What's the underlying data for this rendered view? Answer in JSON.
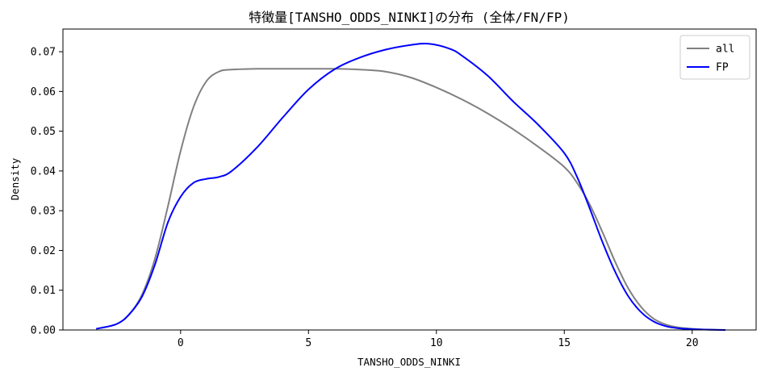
{
  "chart_data": {
    "type": "line",
    "title": "特徴量[TANSHO_ODDS_NINKI]の分布 (全体/FN/FP)",
    "xlabel": "TANSHO_ODDS_NINKI",
    "ylabel": "Density",
    "xlim": [
      -4.6,
      22.5
    ],
    "ylim": [
      0.0,
      0.0757
    ],
    "xticks": [
      0,
      5,
      10,
      15,
      20
    ],
    "xtick_labels": [
      "0",
      "5",
      "10",
      "15",
      "20"
    ],
    "yticks": [
      0.0,
      0.01,
      0.02,
      0.03,
      0.04,
      0.05,
      0.06,
      0.07
    ],
    "ytick_labels": [
      "0.00",
      "0.01",
      "0.02",
      "0.03",
      "0.04",
      "0.05",
      "0.06",
      "0.07"
    ],
    "grid": false,
    "legend_position": "top-right",
    "series": [
      {
        "name": "all",
        "color": "#808080",
        "x": [
          -3.3,
          -2.5,
          -2.0,
          -1.5,
          -1.0,
          -0.5,
          0.0,
          0.5,
          1.0,
          1.5,
          2.0,
          3.0,
          4.0,
          5.0,
          6.0,
          7.0,
          8.0,
          9.0,
          10.0,
          11.0,
          12.0,
          13.0,
          14.0,
          15.0,
          15.5,
          16.0,
          16.5,
          17.0,
          17.5,
          18.0,
          18.5,
          19.0,
          19.5,
          20.0,
          20.5,
          21.3
        ],
        "y": [
          0.0003,
          0.0015,
          0.004,
          0.009,
          0.018,
          0.031,
          0.045,
          0.056,
          0.0625,
          0.065,
          0.0655,
          0.0657,
          0.0657,
          0.0657,
          0.0657,
          0.0655,
          0.065,
          0.0635,
          0.061,
          0.058,
          0.0545,
          0.0505,
          0.046,
          0.041,
          0.037,
          0.0315,
          0.0245,
          0.017,
          0.0105,
          0.0058,
          0.0028,
          0.0013,
          0.0006,
          0.0003,
          0.0001,
          0.0
        ]
      },
      {
        "name": "FP",
        "color": "#0000ff",
        "x": [
          -3.3,
          -2.5,
          -2.0,
          -1.5,
          -1.0,
          -0.5,
          0.0,
          0.5,
          1.0,
          1.5,
          2.0,
          3.0,
          4.0,
          5.0,
          6.0,
          7.0,
          8.0,
          9.0,
          9.7,
          10.5,
          11.0,
          12.0,
          13.0,
          14.0,
          15.0,
          15.5,
          16.0,
          16.5,
          17.0,
          17.5,
          18.0,
          18.5,
          19.0,
          19.5,
          20.0,
          20.5,
          21.3
        ],
        "y": [
          0.0003,
          0.0015,
          0.004,
          0.0085,
          0.0165,
          0.027,
          0.0335,
          0.037,
          0.038,
          0.0385,
          0.04,
          0.046,
          0.0535,
          0.0605,
          0.0655,
          0.0685,
          0.0705,
          0.0717,
          0.072,
          0.0708,
          0.069,
          0.064,
          0.0575,
          0.0515,
          0.0445,
          0.0385,
          0.0305,
          0.022,
          0.0145,
          0.0085,
          0.0045,
          0.0021,
          0.0009,
          0.0004,
          0.0002,
          0.0001,
          0.0
        ]
      }
    ]
  }
}
